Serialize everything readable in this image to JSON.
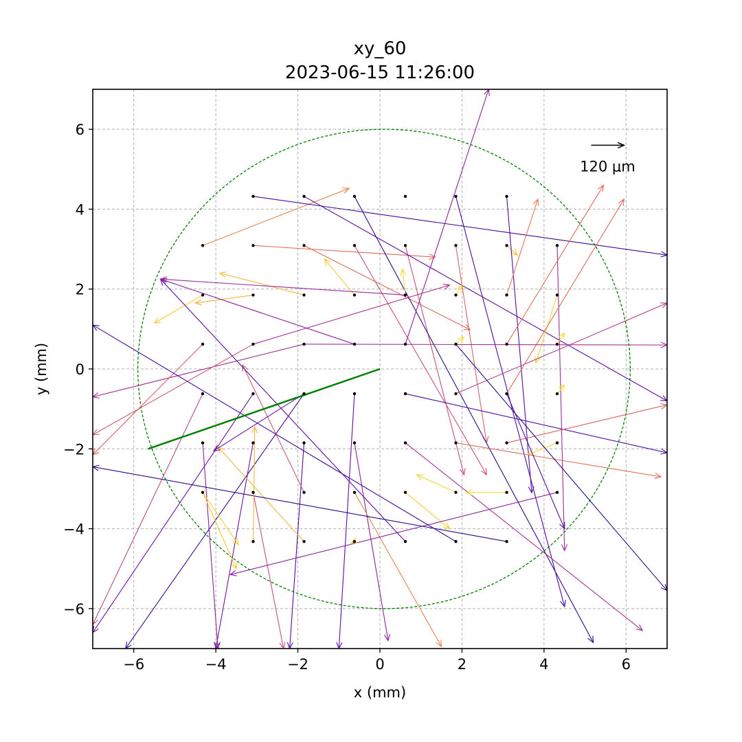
{
  "chart_data": {
    "type": "quiver",
    "title": "xy_60",
    "subtitle": "2023-06-15 11:26:00",
    "xlabel": "x (mm)",
    "ylabel": "y (mm)",
    "xlim": [
      -7,
      7
    ],
    "ylim": [
      -7,
      7
    ],
    "xticks": [
      -6,
      -4,
      -2,
      0,
      2,
      4,
      6
    ],
    "yticks": [
      -6,
      -4,
      -2,
      0,
      2,
      4,
      6
    ],
    "xtick_labels": [
      "−6",
      "−4",
      "−2",
      "0",
      "2",
      "4",
      "6"
    ],
    "ytick_labels": [
      "−6",
      "−4",
      "−2",
      "0",
      "2",
      "4",
      "6"
    ],
    "grid": true,
    "circle": {
      "cx": 0.1,
      "cy": 0,
      "r": 6,
      "color": "#008000",
      "style": "dashed"
    },
    "reference_line": {
      "x1": 0,
      "y1": 0,
      "x2": -5.65,
      "y2": -2.0,
      "color": "#008000"
    },
    "scale_arrow": {
      "label": "120 μm",
      "x1": 5.15,
      "x2": 5.95,
      "y": 5.6
    },
    "points": [
      [
        -3.09,
        4.32
      ],
      [
        -1.85,
        4.32
      ],
      [
        -0.62,
        4.32
      ],
      [
        0.62,
        4.32
      ],
      [
        1.85,
        4.32
      ],
      [
        3.09,
        4.32
      ],
      [
        -4.32,
        3.09
      ],
      [
        -3.09,
        3.09
      ],
      [
        -1.85,
        3.09
      ],
      [
        -0.62,
        3.09
      ],
      [
        0.62,
        3.09
      ],
      [
        1.85,
        3.09
      ],
      [
        3.09,
        3.09
      ],
      [
        4.32,
        3.09
      ],
      [
        -4.32,
        1.85
      ],
      [
        -3.09,
        1.85
      ],
      [
        -1.85,
        1.85
      ],
      [
        -0.62,
        1.85
      ],
      [
        0.62,
        1.85
      ],
      [
        1.85,
        1.85
      ],
      [
        3.09,
        1.85
      ],
      [
        4.32,
        1.85
      ],
      [
        -4.32,
        0.62
      ],
      [
        -3.09,
        0.62
      ],
      [
        -1.85,
        0.62
      ],
      [
        -0.62,
        0.62
      ],
      [
        0.62,
        0.62
      ],
      [
        1.85,
        0.62
      ],
      [
        3.09,
        0.62
      ],
      [
        4.32,
        0.62
      ],
      [
        -4.32,
        -0.62
      ],
      [
        -3.09,
        -0.62
      ],
      [
        -1.85,
        -0.62
      ],
      [
        -0.62,
        -0.62
      ],
      [
        0.62,
        -0.62
      ],
      [
        1.85,
        -0.62
      ],
      [
        3.09,
        -0.62
      ],
      [
        4.32,
        -0.62
      ],
      [
        -4.32,
        -1.85
      ],
      [
        -3.09,
        -1.85
      ],
      [
        -1.85,
        -1.85
      ],
      [
        -0.62,
        -1.85
      ],
      [
        0.62,
        -1.85
      ],
      [
        1.85,
        -1.85
      ],
      [
        3.09,
        -1.85
      ],
      [
        4.32,
        -1.85
      ],
      [
        -4.32,
        -3.09
      ],
      [
        -3.09,
        -3.09
      ],
      [
        -1.85,
        -3.09
      ],
      [
        -0.62,
        -3.09
      ],
      [
        0.62,
        -3.09
      ],
      [
        1.85,
        -3.09
      ],
      [
        3.09,
        -3.09
      ],
      [
        4.32,
        -3.09
      ],
      [
        -3.09,
        -4.32
      ],
      [
        -1.85,
        -4.32
      ],
      [
        -0.62,
        -4.32
      ],
      [
        0.62,
        -4.32
      ],
      [
        1.85,
        -4.32
      ],
      [
        3.09,
        -4.32
      ]
    ],
    "vectors": [
      {
        "x": -4.32,
        "y": 3.09,
        "x2": -0.75,
        "y2": 4.52,
        "color": "#e8834a"
      },
      {
        "x": -3.09,
        "y": 3.09,
        "x2": 1.35,
        "y2": 2.8,
        "color": "#dd6a5c"
      },
      {
        "x": -1.85,
        "y": 3.09,
        "x2": 2.2,
        "y2": 0.98,
        "color": "#db6b5c"
      },
      {
        "x": -0.62,
        "y": 3.09,
        "x2": 2.6,
        "y2": -2.65,
        "color": "#c9507a"
      },
      {
        "x": 0.62,
        "y": 3.09,
        "x2": 2.05,
        "y2": -2.65,
        "color": "#c54f7a"
      },
      {
        "x": 1.85,
        "y": 3.09,
        "x2": 2.6,
        "y2": -1.85,
        "color": "#d66064"
      },
      {
        "x": 3.09,
        "y": 3.09,
        "x2": 3.35,
        "y2": 2.85,
        "color": "#f7c631"
      },
      {
        "x": 4.32,
        "y": 3.09,
        "x2": 4.5,
        "y2": -4.55,
        "color": "#9b2a9e"
      },
      {
        "x": -3.09,
        "y": 4.32,
        "x2": 7.0,
        "y2": 2.85,
        "color": "#3e0994"
      },
      {
        "x": -1.85,
        "y": 4.32,
        "x2": 7.0,
        "y2": -0.8,
        "color": "#5c0ca2"
      },
      {
        "x": -0.62,
        "y": 4.32,
        "x2": 5.2,
        "y2": -6.85,
        "color": "#2b078a"
      },
      {
        "x": 1.85,
        "y": 4.32,
        "x2": 4.5,
        "y2": -5.95,
        "color": "#4b0ba0"
      },
      {
        "x": 3.09,
        "y": 4.32,
        "x2": 3.7,
        "y2": -3.1,
        "color": "#4f0ca0"
      },
      {
        "x": -4.32,
        "y": 1.85,
        "x2": -5.5,
        "y2": 1.15,
        "color": "#f8cd35"
      },
      {
        "x": -3.09,
        "y": 1.85,
        "x2": -4.5,
        "y2": 1.65,
        "color": "#f5b33a"
      },
      {
        "x": -1.85,
        "y": 1.85,
        "x2": -3.9,
        "y2": 2.4,
        "color": "#f6bd36"
      },
      {
        "x": -0.62,
        "y": 1.85,
        "x2": -1.35,
        "y2": 2.75,
        "color": "#f7ca35"
      },
      {
        "x": 0.62,
        "y": 1.85,
        "x2": 0.55,
        "y2": 2.5,
        "color": "#f8da2f"
      },
      {
        "x": 1.85,
        "y": 1.85,
        "x2": 2.0,
        "y2": 2.1,
        "color": "#f8de2e"
      },
      {
        "x": 3.09,
        "y": 1.85,
        "x2": 3.85,
        "y2": 4.25,
        "color": "#e87752"
      },
      {
        "x": 4.32,
        "y": 1.85,
        "x2": 3.8,
        "y2": 0.15,
        "color": "#f8d42f"
      },
      {
        "x": -0.62,
        "y": 0.62,
        "x2": -5.35,
        "y2": 2.25,
        "color": "#8a1f9c"
      },
      {
        "x": 0.62,
        "y": 0.62,
        "x2": 2.65,
        "y2": 7.0,
        "color": "#8c1e9c"
      },
      {
        "x": 1.85,
        "y": 0.62,
        "x2": 2.05,
        "y2": 0.8,
        "color": "#f9e32c"
      },
      {
        "x": 3.09,
        "y": 0.62,
        "x2": 5.45,
        "y2": 4.6,
        "color": "#e06a55"
      },
      {
        "x": 4.32,
        "y": 0.62,
        "x2": 4.5,
        "y2": 0.9,
        "color": "#f9e12c"
      },
      {
        "x": -1.85,
        "y": 0.62,
        "x2": -7.0,
        "y2": -0.7,
        "color": "#a2308f"
      },
      {
        "x": -3.09,
        "y": 0.62,
        "x2": -7.0,
        "y2": -1.65,
        "color": "#d0586c"
      },
      {
        "x": -4.32,
        "y": 0.62,
        "x2": -7.0,
        "y2": -2.15,
        "color": "#d7615f"
      },
      {
        "x": 1.85,
        "y": -0.62,
        "x2": 7.0,
        "y2": 1.65,
        "color": "#b2408a"
      },
      {
        "x": 3.09,
        "y": -0.62,
        "x2": 5.95,
        "y2": 4.25,
        "color": "#e06a55"
      },
      {
        "x": 4.32,
        "y": -0.62,
        "x2": 4.5,
        "y2": -0.4,
        "color": "#f9e12c"
      },
      {
        "x": 0.62,
        "y": -0.62,
        "x2": 7.0,
        "y2": -2.1,
        "color": "#4b0ba0"
      },
      {
        "x": -0.62,
        "y": -0.62,
        "x2": -1.0,
        "y2": -7.0,
        "color": "#5a0ca3"
      },
      {
        "x": -1.85,
        "y": -0.62,
        "x2": -6.2,
        "y2": -7.0,
        "color": "#3a0993"
      },
      {
        "x": -3.09,
        "y": -0.62,
        "x2": -7.0,
        "y2": -6.6,
        "color": "#6a129f"
      },
      {
        "x": -4.32,
        "y": -0.62,
        "x2": -7.0,
        "y2": -6.4,
        "color": "#bb4882"
      },
      {
        "x": 3.09,
        "y": -1.85,
        "x2": 7.0,
        "y2": -0.9,
        "color": "#d7615f"
      },
      {
        "x": 4.32,
        "y": -1.85,
        "x2": 3.6,
        "y2": -2.15,
        "color": "#f8d42f"
      },
      {
        "x": 1.85,
        "y": -1.85,
        "x2": 6.85,
        "y2": -2.7,
        "color": "#dd6a5c"
      },
      {
        "x": 0.62,
        "y": -1.85,
        "x2": 6.4,
        "y2": -6.55,
        "color": "#a2308f"
      },
      {
        "x": -0.62,
        "y": -1.85,
        "x2": 0.2,
        "y2": -6.8,
        "color": "#8a1f9c"
      },
      {
        "x": -1.85,
        "y": -1.85,
        "x2": -2.2,
        "y2": -7.0,
        "color": "#4b0ba0"
      },
      {
        "x": -3.09,
        "y": -1.85,
        "x2": -4.0,
        "y2": -7.0,
        "color": "#6a129f"
      },
      {
        "x": -4.32,
        "y": -1.85,
        "x2": -3.95,
        "y2": -7.0,
        "color": "#8a1f9c"
      },
      {
        "x": 3.09,
        "y": -3.09,
        "x2": 2.1,
        "y2": -3.09,
        "color": "#f9dd2e"
      },
      {
        "x": 1.85,
        "y": -3.09,
        "x2": 0.9,
        "y2": -2.65,
        "color": "#f8d42f"
      },
      {
        "x": 0.62,
        "y": -3.09,
        "x2": 1.7,
        "y2": -4.0,
        "color": "#f8cd35"
      },
      {
        "x": -0.62,
        "y": -3.09,
        "x2": 1.5,
        "y2": -6.95,
        "color": "#e8834a"
      },
      {
        "x": -1.85,
        "y": -3.09,
        "x2": -3.35,
        "y2": 0.1,
        "color": "#cf566f"
      },
      {
        "x": -3.09,
        "y": -3.09,
        "x2": -2.35,
        "y2": -7.0,
        "color": "#c54f7a"
      },
      {
        "x": -4.32,
        "y": -3.09,
        "x2": -3.5,
        "y2": -5.0,
        "color": "#f7c631"
      },
      {
        "x": 4.32,
        "y": -3.09,
        "x2": -3.65,
        "y2": -5.15,
        "color": "#8a1f9c"
      },
      {
        "x": -3.09,
        "y": -4.32,
        "x2": -3.05,
        "y2": -4.32,
        "color": "#f5b33a"
      },
      {
        "x": -1.85,
        "y": -4.32,
        "x2": -3.95,
        "y2": -1.95,
        "color": "#f5b33a"
      },
      {
        "x": -0.62,
        "y": -4.32,
        "x2": -0.7,
        "y2": -4.35,
        "color": "#f8cd35"
      },
      {
        "x": 0.62,
        "y": -4.32,
        "x2": -5.35,
        "y2": 2.25,
        "color": "#5e0ca3"
      },
      {
        "x": 1.85,
        "y": -4.32,
        "x2": -7.0,
        "y2": 1.1,
        "color": "#3e0994"
      },
      {
        "x": 3.09,
        "y": -4.32,
        "x2": -7.0,
        "y2": -2.45,
        "color": "#2b078a"
      },
      {
        "x": -4.32,
        "y": -3.09,
        "x2": -3.45,
        "y2": -4.4,
        "color": "#f8d42f"
      },
      {
        "x": -3.09,
        "y": -4.32,
        "x2": -3.05,
        "y2": -1.45,
        "color": "#f5b33a"
      },
      {
        "x": 3.09,
        "y": -0.62,
        "x2": 4.5,
        "y2": -4.0,
        "color": "#4f0ca0"
      },
      {
        "x": 1.85,
        "y": 0.62,
        "x2": 7.0,
        "y2": -5.55,
        "color": "#2b078a"
      },
      {
        "x": -1.85,
        "y": -0.62,
        "x2": -4.05,
        "y2": -2.05,
        "color": "#6a129f"
      },
      {
        "x": 0.62,
        "y": 1.85,
        "x2": -5.35,
        "y2": 2.25,
        "color": "#9b2a9e"
      },
      {
        "x": -1.85,
        "y": 0.62,
        "x2": 7.0,
        "y2": 0.6,
        "color": "#a2308f"
      },
      {
        "x": -3.09,
        "y": 0.62,
        "x2": 1.7,
        "y2": 2.1,
        "color": "#a2308f"
      },
      {
        "x": 3.09,
        "y": 1.85,
        "x2": 3.1,
        "y2": 1.85,
        "color": "#f8d42f"
      }
    ]
  }
}
